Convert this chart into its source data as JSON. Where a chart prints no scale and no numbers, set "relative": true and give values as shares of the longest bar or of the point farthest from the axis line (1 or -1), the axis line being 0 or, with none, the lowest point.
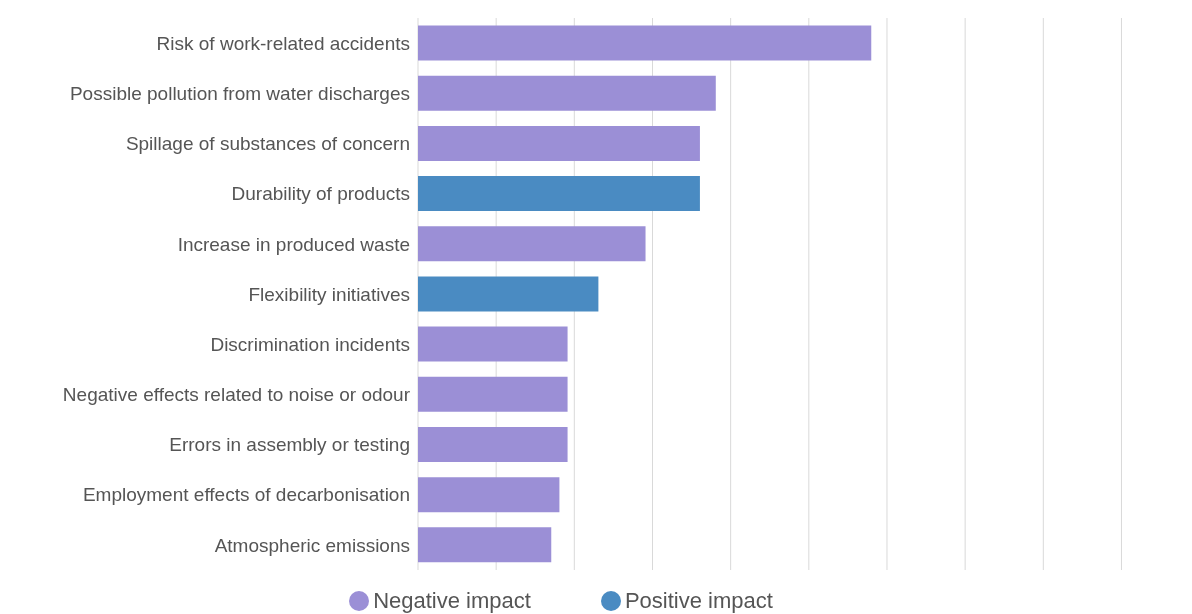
{
  "chart_data": {
    "type": "bar",
    "orientation": "horizontal",
    "relative": true,
    "stacked": true,
    "grid": "x",
    "legend": "bottom",
    "tick_labels": "y",
    "categories": [
      "Risk of work-related accidents",
      "Possible pollution from water discharges",
      "Spillage of substances of concern",
      "Durability of products",
      "Increase in produced waste",
      "Flexibility initiatives",
      "Discrimination incidents",
      "Negative effects related to noise or odour",
      "Errors in assembly or testing",
      "Employment effects of decarbonisation",
      "Atmospheric emissions"
    ],
    "series": [
      {
        "name": "Positive impact",
        "color": "#4a8bc2",
        "values": [
          null,
          null,
          null,
          0.622,
          null,
          0.398,
          null,
          null,
          null,
          null,
          null
        ]
      },
      {
        "name": "Negative impact",
        "color": "#9b8fd6",
        "values": [
          1,
          0.657,
          0.622,
          null,
          0.502,
          null,
          0.33,
          0.33,
          0.33,
          0.312,
          0.294
        ]
      }
    ]
  }
}
